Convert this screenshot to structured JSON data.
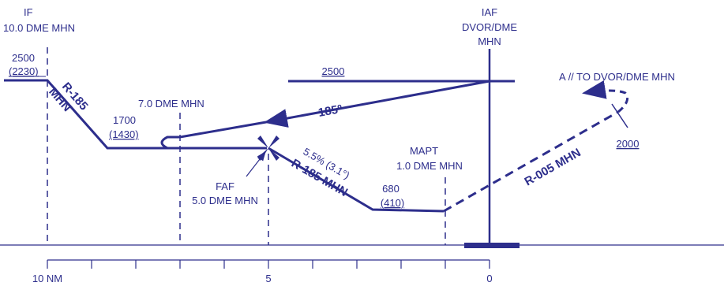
{
  "colors": {
    "ink": "#2d2e8c",
    "background": "#ffffff"
  },
  "fixes": {
    "if_prefix": "I",
    "if_suffix": "F",
    "if_dme": "10.0 DME MHN",
    "iaf_prefix": "I",
    "iaf_suffix": "AF",
    "iaf_line1": "DVOR/DME",
    "iaf_line2": "MHN",
    "dme7": "7.0 DME MHN",
    "faf_name": "FAF",
    "faf_dme": "5.0 DME MHN",
    "mapt_name": "MAPT",
    "mapt_dme": "1.0 DME MHN"
  },
  "altitudes": {
    "if_alt": "2500",
    "if_height": "(2230)",
    "iaf_alt": "2500",
    "dme7_alt": "1700",
    "dme7_height": "(1430)",
    "mda_alt": "680",
    "mda_height": "(410)",
    "missed_alt": "2000"
  },
  "courses": {
    "initial_radial": "R-185",
    "initial_station": "MHN",
    "inbound_course": "185º",
    "final_radial": "R-185 MHN",
    "gradient": "5.5% (3.1°)",
    "missed_radial": "R-005 MHN"
  },
  "missed_approach": {
    "instruction": "A // TO DVOR/DME MHN"
  },
  "distance_scale": {
    "unit_label": "10 NM",
    "mid_label": "5",
    "zero_label": "0"
  }
}
